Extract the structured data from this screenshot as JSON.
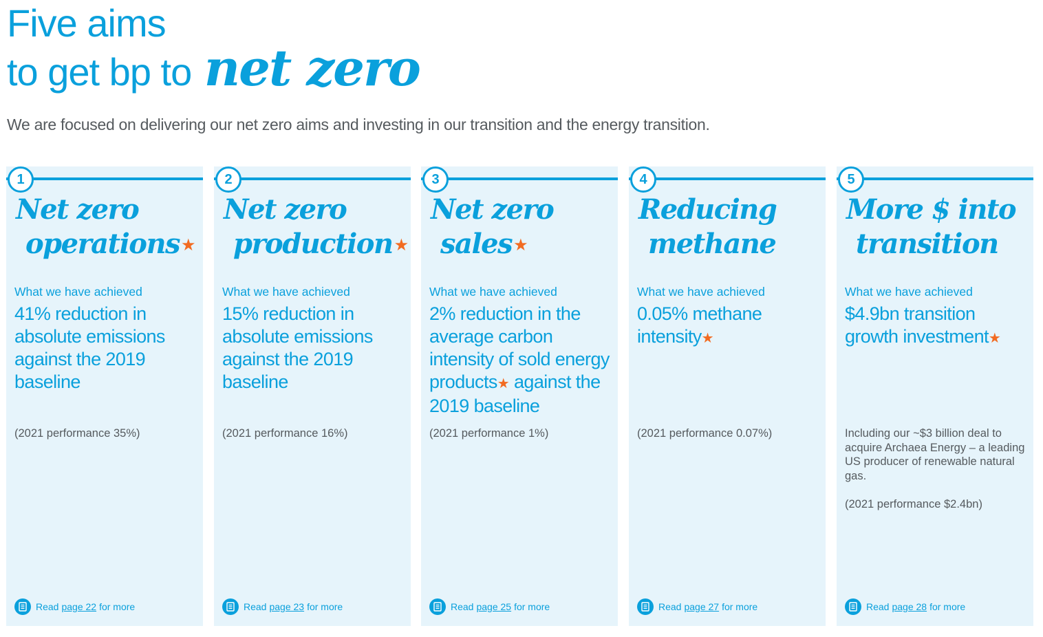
{
  "header": {
    "title_line1": "Five aims",
    "title_line2_prefix": "to get bp to",
    "title_line2_script": "net zero",
    "subtitle": "We are focused on delivering our net zero aims and investing in our transition and the energy transition."
  },
  "read_labels": {
    "prefix": "Read",
    "suffix": "for more"
  },
  "cards": [
    {
      "number": "1",
      "heading1": "Net zero",
      "heading2": "operations",
      "label": "What we have achieved",
      "value_a": "41% reduction in absolute emissions against the 2019 baseline",
      "value_b": "",
      "note": "",
      "performance": "(2021 performance 35%)",
      "page_link": "page 22"
    },
    {
      "number": "2",
      "heading1": "Net zero",
      "heading2": "production",
      "label": "What we have achieved",
      "value_a": "15% reduction in absolute emissions against the 2019 baseline",
      "value_b": "",
      "note": "",
      "performance": "(2021 performance 16%)",
      "page_link": "page 23"
    },
    {
      "number": "3",
      "heading1": "Net zero",
      "heading2": "sales",
      "label": "What we have achieved",
      "value_a": "2% reduction in the average carbon intensity of sold energy products",
      "value_b": " against the 2019 baseline",
      "note": "",
      "performance": "(2021 performance 1%)",
      "page_link": "page 25"
    },
    {
      "number": "4",
      "heading1": "Reducing",
      "heading2": "methane",
      "label": "What we have achieved",
      "value_a": "0.05% methane intensity",
      "value_b": "",
      "note": "",
      "performance": "(2021 performance 0.07%)",
      "page_link": "page 27"
    },
    {
      "number": "5",
      "heading1": "More $ into",
      "heading2": "transition",
      "label": "What we have achieved",
      "value_a": "$4.9bn transition growth investment",
      "value_b": "",
      "note": "Including our ~$3 billion deal to acquire Archaea Energy – a leading US producer of renewable natural gas.",
      "performance": "(2021 performance $2.4bn)",
      "page_link": "page 28"
    }
  ],
  "colors": {
    "accent": "#0aa0dc",
    "star": "#f26b21",
    "card_bg": "#e6f4fb",
    "body_text": "#555a5e"
  },
  "icons": {
    "star": "star-icon",
    "read": "document-icon"
  }
}
